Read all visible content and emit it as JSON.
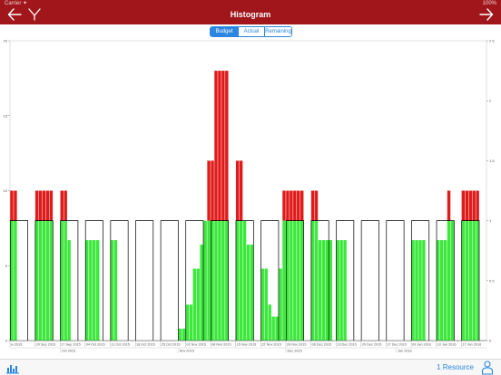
{
  "status_bar": {
    "left": "Carrier ✦",
    "right": "100%"
  },
  "nav": {
    "title": "Histogram",
    "back_icon": "back-arrow-icon",
    "menu_icon": "tune-icon",
    "forward_icon": "forward-arrow-icon"
  },
  "segments": {
    "items": [
      "Budget",
      "Actual",
      "Remaining"
    ],
    "selected": 0
  },
  "bottom": {
    "resource_label": "1 Resource",
    "left_icon": "histogram-icon",
    "right_icon": "person-icon"
  },
  "colors": {
    "bar": "#a0161b",
    "accent": "#2a86e0",
    "capacity": "#3be83b",
    "overload": "#e01b1b",
    "outline": "#000000"
  },
  "chart_data": {
    "type": "bar",
    "y_left": {
      "min": 0,
      "max": 20,
      "ticks": [
        "0",
        "5",
        "10",
        "15",
        "20"
      ]
    },
    "y_right": {
      "min": 0,
      "max": 2.5,
      "ticks": [
        "0",
        "0.5",
        "1",
        "1.5",
        "2",
        "2.5"
      ]
    },
    "capacity": 8,
    "week_labels": [
      "w 2015",
      "20 Sep 2015",
      "27 Sep 2015",
      "04 Oct 2015",
      "11 Oct 2015",
      "18 Oct 2015",
      "25 Oct 2015",
      "01 Nov 2015",
      "08 Nov 2015",
      "15 Nov 2015",
      "22 Nov 2015",
      "29 Nov 2015",
      "06 Dec 2015",
      "13 Dec 2015",
      "20 Dec 2015",
      "27 Dec 2015",
      "03 Jan 2016",
      "10 Jan 2016",
      "17 Jan 2016"
    ],
    "month_labels": [
      "Oct 2015",
      "Nov 2015",
      "Dec 2015",
      "Jan 2016"
    ],
    "month_week_index": [
      2.0,
      6.7,
      11.0,
      15.4
    ],
    "weeks": [
      [
        10,
        10,
        0,
        0,
        0,
        0,
        0
      ],
      [
        10,
        10,
        10,
        10,
        10,
        0,
        0
      ],
      [
        10,
        10,
        6.7,
        0,
        0,
        0,
        0
      ],
      [
        6.7,
        6.7,
        6.7,
        6.7,
        0,
        0,
        0
      ],
      [
        6.7,
        6.7,
        0,
        0,
        0,
        0,
        0
      ],
      [
        0,
        0,
        0,
        0,
        0,
        0,
        0
      ],
      [
        0,
        0,
        0,
        0,
        0,
        0.8,
        0.8
      ],
      [
        2.4,
        2.4,
        4.8,
        4.8,
        6.4,
        8,
        12
      ],
      [
        12,
        18,
        18,
        18,
        18,
        0,
        0
      ],
      [
        12,
        12,
        8,
        6.4,
        6.4,
        0,
        0
      ],
      [
        4.8,
        4.8,
        2.4,
        1.6,
        1.6,
        4.8,
        10
      ],
      [
        10,
        10,
        10,
        10,
        10,
        0,
        0
      ],
      [
        10,
        10,
        6.7,
        6.7,
        6.7,
        6.7,
        0
      ],
      [
        6.7,
        6.7,
        6.7,
        0,
        0,
        0,
        0
      ],
      [
        0,
        0,
        0,
        0,
        0,
        0,
        0
      ],
      [
        0,
        0,
        0,
        0,
        0,
        0,
        0
      ],
      [
        6.7,
        6.7,
        6.7,
        6.7,
        0,
        0,
        0
      ],
      [
        6.7,
        6.7,
        6.7,
        10,
        8,
        0,
        0
      ],
      [
        10,
        10,
        10,
        10,
        10,
        0,
        0
      ]
    ]
  }
}
